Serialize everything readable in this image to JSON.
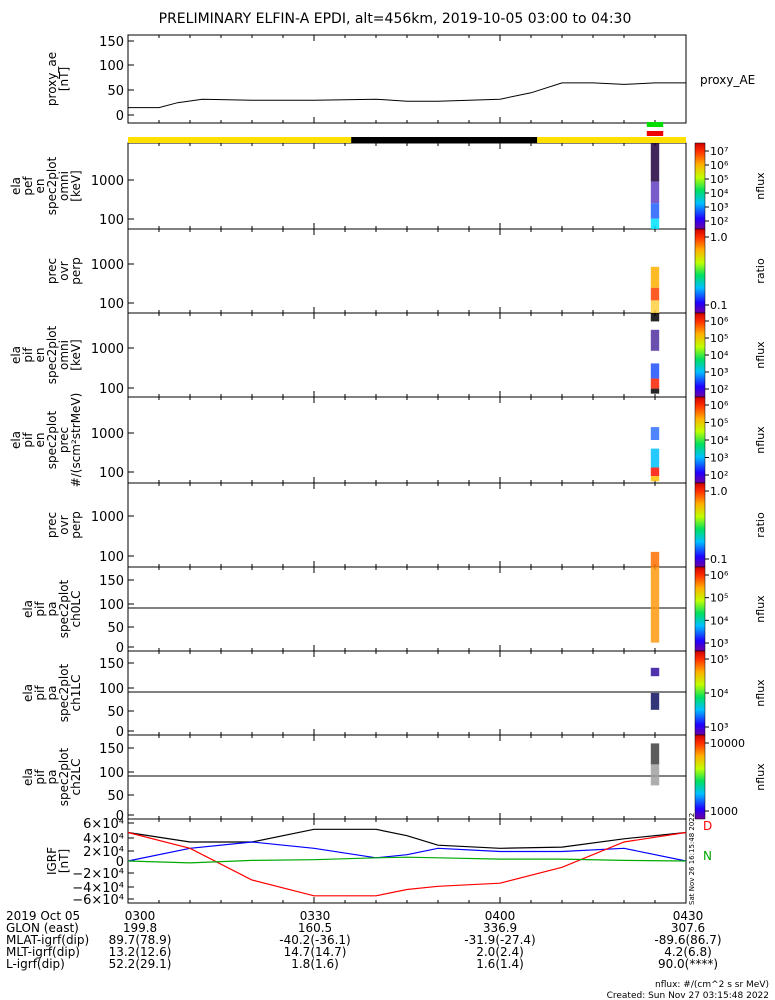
{
  "title": "PRELIMINARY ELFIN-A EPDI, alt=456km, 2019-10-05 03:00 to 04:30",
  "time_axis": {
    "start": "2019-10-05 03:00",
    "end": "2019-10-05 04:30",
    "ticks": [
      "0300",
      "0330",
      "0400",
      "0430"
    ]
  },
  "panels": [
    {
      "id": "proxy_ae",
      "ylabel": [
        "proxy_ae",
        "[nT]"
      ],
      "yticks": [
        "150",
        "100",
        "50",
        "0"
      ],
      "right_label": "proxy_AE"
    },
    {
      "id": "pef_en_omni",
      "ylabel": [
        "ela",
        "pef",
        "en",
        "spec2plot",
        "omni",
        "[keV]"
      ],
      "yticks": [
        "1000",
        "100"
      ]
    },
    {
      "id": "prec_perp_1",
      "ylabel": [
        "prec",
        "ovr",
        "perp"
      ],
      "yticks": [
        "1000",
        "100"
      ]
    },
    {
      "id": "pif_en_omni",
      "ylabel": [
        "ela",
        "pif",
        "en",
        "spec2plot",
        "omni",
        "[keV]"
      ],
      "yticks": [
        "1000",
        "100"
      ]
    },
    {
      "id": "pif_en_prec",
      "ylabel": [
        "ela",
        "pif",
        "en",
        "spec2plot",
        "prec",
        "#/(scm²strMeV)"
      ],
      "yticks": [
        "1000",
        "100"
      ]
    },
    {
      "id": "prec_perp_2",
      "ylabel": [
        "prec",
        "ovr",
        "perp"
      ],
      "yticks": [
        "1000",
        "100"
      ]
    },
    {
      "id": "pa_ch0",
      "ylabel": [
        "ela",
        "pif",
        "pa",
        "spec2plot",
        "ch0LC"
      ],
      "yticks": [
        "150",
        "100",
        "50",
        "0"
      ]
    },
    {
      "id": "pa_ch1",
      "ylabel": [
        "ela",
        "pif",
        "pa",
        "spec2plot",
        "ch1LC"
      ],
      "yticks": [
        "150",
        "100",
        "50",
        "0"
      ]
    },
    {
      "id": "pa_ch2",
      "ylabel": [
        "ela",
        "pif",
        "pa",
        "spec2plot",
        "ch2LC"
      ],
      "yticks": [
        "150",
        "100",
        "50",
        "0"
      ]
    },
    {
      "id": "igrf",
      "ylabel": [
        "IGRF",
        "[nT]"
      ],
      "yticks": [
        "6×10⁴",
        "4×10⁴",
        "2×10⁴",
        "0",
        "−2×10⁴",
        "−4×10⁴",
        "−6×10⁴"
      ]
    }
  ],
  "colorbars": [
    {
      "ticks": [
        "10⁷",
        "10⁶",
        "10⁵",
        "10⁴",
        "10³",
        "10²"
      ],
      "label": "nflux"
    },
    {
      "ticks": [
        "1.0",
        "0.1"
      ],
      "label": "ratio"
    },
    {
      "ticks": [
        "10⁶",
        "10⁵",
        "10⁴",
        "10³",
        "10²"
      ],
      "label": "nflux"
    },
    {
      "ticks": [
        "10⁶",
        "10⁵",
        "10⁴",
        "10³",
        "10²"
      ],
      "label": "nflux"
    },
    {
      "ticks": [
        "1.0",
        "0.1"
      ],
      "label": "ratio"
    },
    {
      "ticks": [
        "10⁶",
        "10⁵",
        "10⁴",
        "10³"
      ],
      "label": "nflux"
    },
    {
      "ticks": [
        "10⁵",
        "10⁴",
        "10³"
      ],
      "label": "nflux"
    },
    {
      "ticks": [
        "10000",
        "1000"
      ],
      "label": "nflux"
    }
  ],
  "igrf_legend": [
    "D",
    "N"
  ],
  "timestamp_vertical": "Sat Nov 26 16:15:48 2022",
  "orbit_table": {
    "rows": [
      {
        "label": "2019 Oct 05",
        "values": [
          "0300",
          "0330",
          "0400",
          "0430"
        ]
      },
      {
        "label": "GLON (east)",
        "values": [
          "199.8",
          "160.5",
          "336.9",
          "307.6"
        ]
      },
      {
        "label": "MLAT-igrf(dip)",
        "values": [
          "89.7(78.9)",
          "-40.2(-36.1)",
          "-31.9(-27.4)",
          "-89.6(86.7)"
        ]
      },
      {
        "label": "MLT-igrf(dip)",
        "values": [
          "13.2(12.6)",
          "14.7(14.7)",
          "2.0(2.4)",
          "4.2(6.8)"
        ]
      },
      {
        "label": "L-igrf(dip)",
        "values": [
          "52.2(29.1)",
          "1.8(1.6)",
          "1.6(1.4)",
          "90.0(****)"
        ]
      }
    ]
  },
  "footer": {
    "units": "nflux: #/(cm^2 s sr MeV)",
    "created": "Created: Sun Nov 27 03:15:48 2022"
  },
  "chart_data": {
    "type": "line",
    "title": "PRELIMINARY ELFIN-A EPDI, alt=456km, 2019-10-05 03:00 to 04:30",
    "x_unit": "time (UT)",
    "proxy_ae": {
      "ylim": [
        0,
        150
      ],
      "x": [
        "03:00",
        "03:05",
        "03:08",
        "03:12",
        "03:20",
        "03:30",
        "03:40",
        "03:45",
        "03:50",
        "03:55",
        "04:00",
        "04:05",
        "04:10",
        "04:15",
        "04:20",
        "04:25",
        "04:30"
      ],
      "values": [
        15,
        15,
        25,
        32,
        30,
        30,
        32,
        28,
        28,
        30,
        32,
        45,
        65,
        65,
        62,
        65,
        65
      ]
    },
    "orbit_bar": [
      {
        "from": "03:00",
        "to": "03:36",
        "color": "#ffe000"
      },
      {
        "from": "03:36",
        "to": "04:06",
        "color": "#000000"
      },
      {
        "from": "04:06",
        "to": "04:30",
        "color": "#ffe000"
      }
    ],
    "science_zone_bars": [
      {
        "from": "04:24",
        "to": "04:26",
        "color": "#00dd00"
      },
      {
        "from": "04:24",
        "to": "04:26",
        "color": "#ee0000"
      }
    ],
    "spectrogram_interval": {
      "from": "04:24",
      "to": "04:26"
    },
    "igrf": {
      "ylim": [
        -60000,
        60000
      ],
      "x": [
        "03:00",
        "03:10",
        "03:20",
        "03:30",
        "03:40",
        "03:45",
        "03:50",
        "04:00",
        "04:10",
        "04:20",
        "04:30"
      ],
      "series": [
        {
          "name": "total",
          "color": "#000000",
          "values": [
            45000,
            30000,
            30000,
            50000,
            50000,
            40000,
            25000,
            20000,
            22000,
            35000,
            45000
          ]
        },
        {
          "name": "N",
          "color": "#0000ff",
          "values": [
            0,
            20000,
            30000,
            20000,
            5000,
            10000,
            20000,
            15000,
            15000,
            20000,
            0
          ]
        },
        {
          "name": "D",
          "color": "#ff0000",
          "values": [
            45000,
            20000,
            -30000,
            -55000,
            -55000,
            -45000,
            -40000,
            -35000,
            -10000,
            30000,
            45000
          ]
        },
        {
          "name": "E",
          "color": "#00aa00",
          "values": [
            0,
            -3000,
            1000,
            2000,
            5000,
            6000,
            5000,
            3000,
            3000,
            1000,
            0
          ]
        }
      ]
    }
  }
}
